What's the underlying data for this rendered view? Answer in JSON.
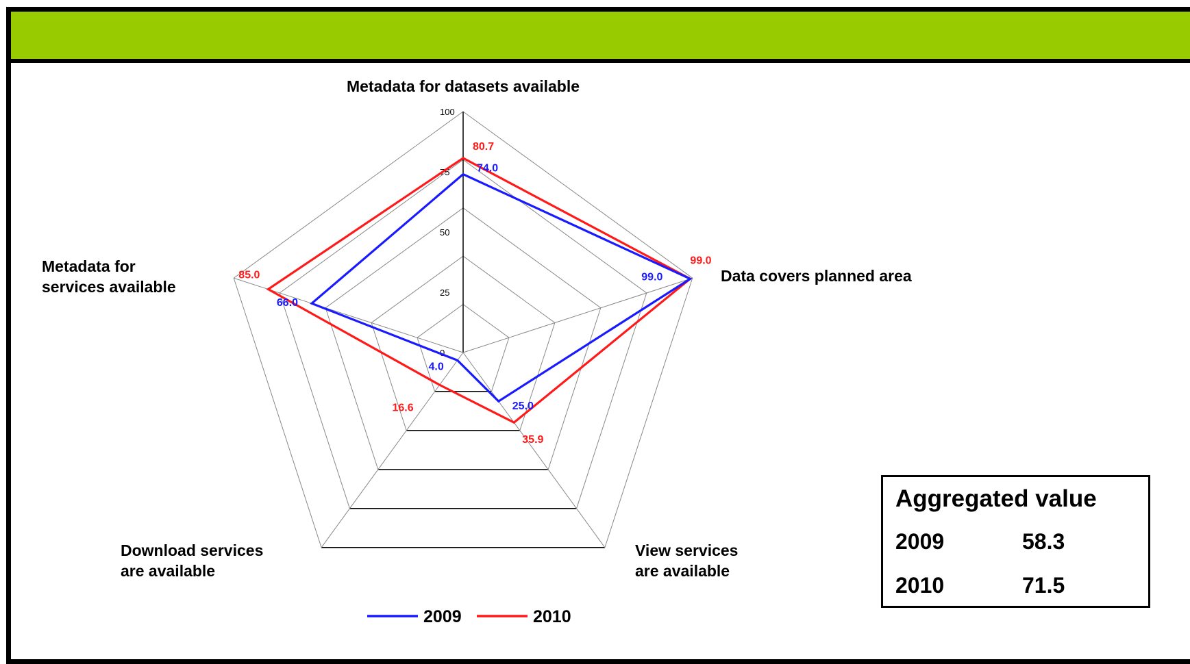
{
  "colors": {
    "header_bar": "#99cc00",
    "series_2009": "#1a1aff",
    "series_2010": "#ff1a1a",
    "grid": "#888888",
    "border": "#000000"
  },
  "chart_data": {
    "type": "radar",
    "title": "",
    "axes": [
      "Metadata for datasets available",
      "Data covers planned area",
      "View services are available",
      "Download services are available",
      "Metadata for services available"
    ],
    "axis_labels_display": [
      [
        "Metadata for datasets available"
      ],
      [
        "Data covers planned area"
      ],
      [
        "View services",
        "are available"
      ],
      [
        "Download services",
        "are available"
      ],
      [
        "Metadata for",
        "services available"
      ]
    ],
    "scale": {
      "min": 0,
      "max": 100,
      "ticks": [
        0,
        25,
        50,
        75,
        100
      ],
      "tick_labels": [
        "0",
        "25",
        "50",
        "75",
        "100"
      ]
    },
    "series": [
      {
        "name": "2009",
        "values": [
          74.0,
          99.0,
          25.0,
          4.0,
          66.0
        ],
        "value_labels": [
          "74.0",
          "99.0",
          "25.0",
          "4.0",
          "66.0"
        ]
      },
      {
        "name": "2010",
        "values": [
          80.7,
          99.0,
          35.9,
          16.6,
          85.0
        ],
        "value_labels": [
          "80.7",
          "99.0",
          "35.9",
          "16.6",
          "85.0"
        ]
      }
    ],
    "legend": {
      "placement": "bottom-center"
    },
    "grid": true
  },
  "aggregated": {
    "title": "Aggregated value",
    "rows": [
      {
        "year": "2009",
        "value": "58.3"
      },
      {
        "year": "2010",
        "value": "71.5"
      }
    ]
  }
}
